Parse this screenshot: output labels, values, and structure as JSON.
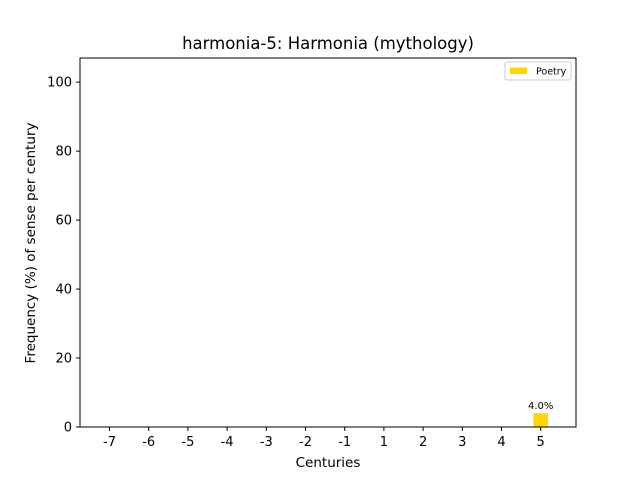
{
  "chart_data": {
    "type": "bar",
    "title": "harmonia-5: Harmonia (mythology)",
    "xlabel": "Centuries",
    "ylabel": "Frequency (%) of sense per century",
    "categories": [
      "-7",
      "-6",
      "-5",
      "-4",
      "-3",
      "-2",
      "-1",
      "1",
      "2",
      "3",
      "4",
      "5"
    ],
    "series": [
      {
        "name": "Poetry",
        "color": "#ffd700",
        "values": [
          0,
          0,
          0,
          0,
          0,
          0,
          0,
          0,
          0,
          0,
          0,
          4.0
        ],
        "labels": [
          "",
          "",
          "",
          "",
          "",
          "",
          "",
          "",
          "",
          "",
          "",
          "4.0%"
        ]
      }
    ],
    "ylim": [
      0,
      107
    ],
    "yticks": [
      0,
      20,
      40,
      60,
      80,
      100
    ],
    "grid": false,
    "legend_position": "top-right"
  }
}
